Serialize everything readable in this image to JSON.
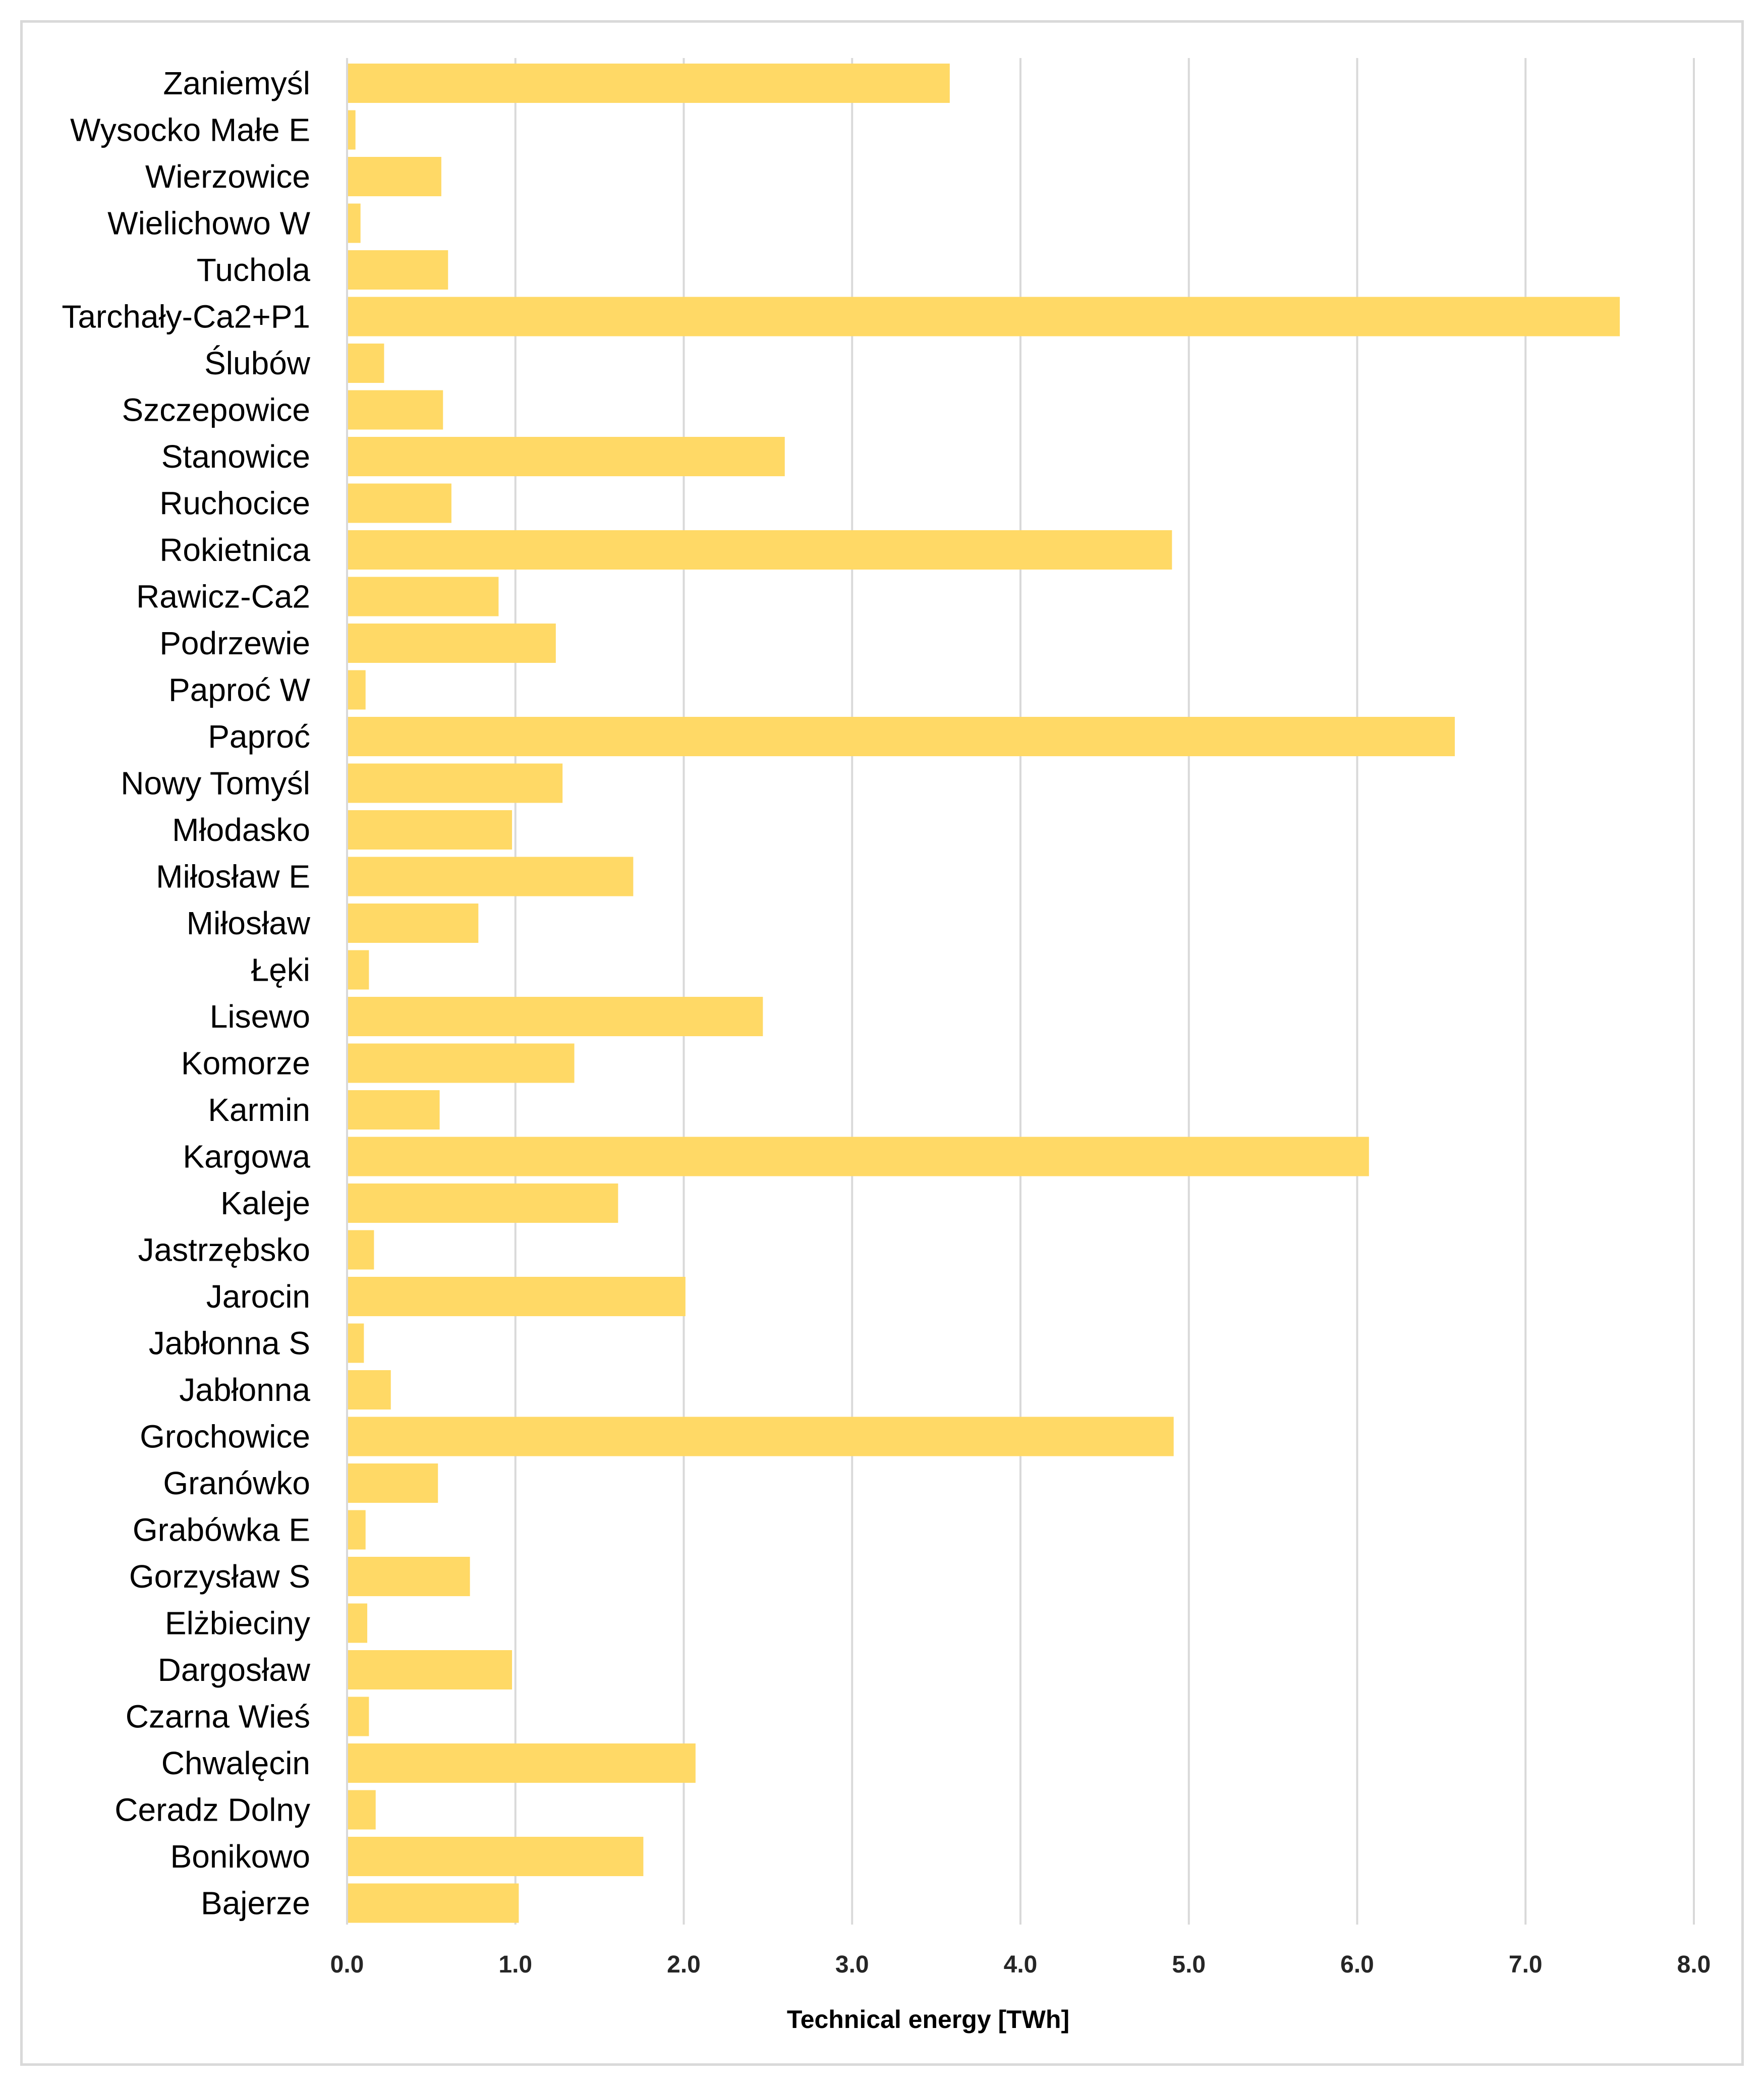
{
  "chart_data": {
    "type": "bar",
    "orientation": "horizontal",
    "title": "",
    "xlabel": "Technical energy [TWh]",
    "ylabel": "",
    "xlim": [
      0,
      8
    ],
    "x_ticks": [
      "0.0",
      "1.0",
      "2.0",
      "3.0",
      "4.0",
      "5.0",
      "6.0",
      "7.0",
      "8.0"
    ],
    "grid": "vertical",
    "bar_color": "#FFD966",
    "grid_color": "#D9D9D9",
    "categories": [
      "Zaniemyśl",
      "Wysocko Małe E",
      "Wierzowice",
      "Wielichowo W",
      "Tuchola",
      "Tarchały-Ca2+P1",
      "Ślubów",
      "Szczepowice",
      "Stanowice",
      "Ruchocice",
      "Rokietnica",
      "Rawicz-Ca2",
      "Podrzewie",
      "Paproć W",
      "Paproć",
      "Nowy Tomyśl",
      "Młodasko",
      "Miłosław E",
      "Miłosław",
      "Łęki",
      "Lisewo",
      "Komorze",
      "Karmin",
      "Kargowa",
      "Kaleje",
      "Jastrzębsko",
      "Jarocin",
      "Jabłonna S",
      "Jabłonna",
      "Grochowice",
      "Granówko",
      "Grabówka E",
      "Gorzysław S",
      "Elżbieciny",
      "Dargosław",
      "Czarna Wieś",
      "Chwalęcin",
      "Ceradz Dolny",
      "Bonikowo",
      "Bajerze"
    ],
    "values": [
      3.58,
      0.05,
      0.56,
      0.08,
      0.6,
      7.56,
      0.22,
      0.57,
      2.6,
      0.62,
      4.9,
      0.9,
      1.24,
      0.11,
      6.58,
      1.28,
      0.98,
      1.7,
      0.78,
      0.13,
      2.47,
      1.35,
      0.55,
      6.07,
      1.61,
      0.16,
      2.01,
      0.1,
      0.26,
      4.91,
      0.54,
      0.11,
      0.73,
      0.12,
      0.98,
      0.13,
      2.07,
      0.17,
      1.76,
      1.02
    ]
  }
}
